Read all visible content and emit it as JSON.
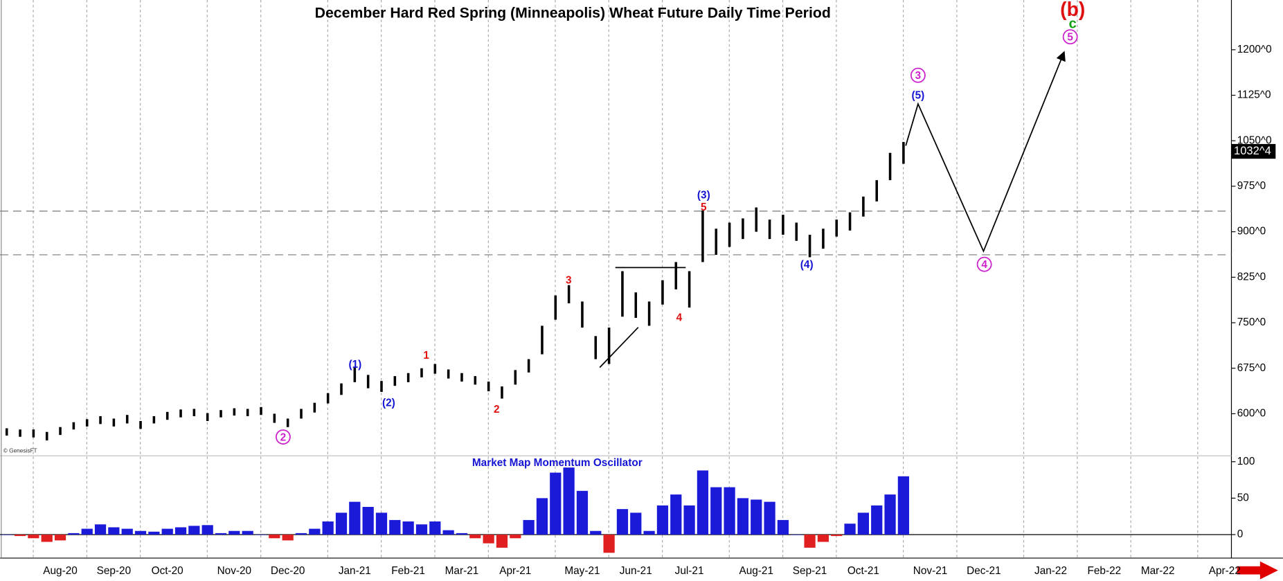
{
  "chart_data": [
    {
      "type": "range-bar",
      "title": "December Hard Red Spring (Minneapolis) Wheat Future  Daily Time Period",
      "credit": "© GenesisFT",
      "color": "#000000",
      "categories": [
        null,
        null,
        null,
        null,
        "Aug-20",
        null,
        null,
        null,
        "Sep-20",
        null,
        null,
        null,
        "Oct-20",
        null,
        null,
        null,
        null,
        "Nov-20",
        null,
        null,
        null,
        "Dec-20",
        null,
        null,
        null,
        null,
        "Jan-21",
        null,
        null,
        null,
        "Feb-21",
        null,
        null,
        null,
        "Mar-21",
        null,
        null,
        null,
        "Apr-21",
        null,
        null,
        null,
        null,
        "May-21",
        null,
        null,
        null,
        "Jun-21",
        null,
        null,
        null,
        "Jul-21",
        null,
        null,
        null,
        null,
        "Aug-21",
        null,
        null,
        null,
        "Sep-21",
        null,
        null,
        null,
        "Oct-21",
        null,
        null,
        null,
        null,
        "Nov-21",
        null,
        null,
        null,
        "Dec-21",
        null,
        null,
        null,
        null,
        "Jan-22",
        null,
        null,
        null,
        "Feb-22",
        null,
        null,
        null,
        "Mar-22",
        null,
        null,
        null,
        null,
        "Apr-22"
      ],
      "high": [
        576,
        574,
        574,
        570,
        578,
        586,
        591,
        596,
        592,
        598,
        588,
        596,
        603,
        607,
        608,
        601,
        606,
        609,
        608,
        611,
        600,
        592,
        608,
        618,
        634,
        650,
        676,
        664,
        654,
        662,
        667,
        675,
        682,
        673,
        667,
        662,
        653,
        645,
        672,
        690,
        745,
        795,
        812,
        785,
        728,
        742,
        835,
        800,
        785,
        820,
        850,
        835,
        935,
        905,
        915,
        922,
        940,
        920,
        928,
        915,
        895,
        905,
        920,
        932,
        958,
        985,
        1030,
        1048,
        null,
        null,
        null,
        null,
        null,
        null,
        null,
        null,
        null,
        null,
        null,
        null,
        null,
        null,
        null,
        null,
        null,
        null,
        null,
        null,
        null,
        null,
        null,
        null
      ],
      "low": [
        564,
        562,
        561,
        556,
        565,
        574,
        579,
        583,
        579,
        584,
        575,
        584,
        590,
        594,
        596,
        588,
        594,
        597,
        596,
        598,
        585,
        578,
        592,
        602,
        617,
        631,
        652,
        642,
        636,
        646,
        652,
        660,
        666,
        658,
        653,
        648,
        637,
        625,
        648,
        668,
        698,
        755,
        782,
        742,
        690,
        682,
        760,
        758,
        745,
        780,
        805,
        775,
        850,
        862,
        875,
        888,
        900,
        888,
        895,
        885,
        858,
        872,
        892,
        902,
        925,
        950,
        985,
        1012,
        null,
        null,
        null,
        null,
        null,
        null,
        null,
        null,
        null,
        null,
        null,
        null,
        null,
        null,
        null,
        null,
        null,
        null,
        null,
        null,
        null,
        null,
        null,
        null
      ],
      "ylim": [
        532,
        1282
      ],
      "yticks": [
        {
          "value": 600,
          "label": "600^0"
        },
        {
          "value": 675,
          "label": "675^0"
        },
        {
          "value": 750,
          "label": "750^0"
        },
        {
          "value": 825,
          "label": "825^0"
        },
        {
          "value": 900,
          "label": "900^0"
        },
        {
          "value": 975,
          "label": "975^0"
        },
        {
          "value": 1050,
          "label": "1050^0"
        },
        {
          "value": 1125,
          "label": "1125^0"
        },
        {
          "value": 1200,
          "label": "1200^0"
        }
      ],
      "reference_lines": [
        934,
        862
      ],
      "last_price": {
        "value": 1032.5,
        "label": "1032^4"
      },
      "annotations": [
        {
          "text": "(1)",
          "color": "#1414d2"
        },
        {
          "text": "(2)",
          "color": "#1414d2"
        },
        {
          "text": "(3)",
          "color": "#1414d2"
        },
        {
          "text": "(4)",
          "color": "#1414d2"
        },
        {
          "text": "(5)",
          "color": "#1414d2"
        },
        {
          "text": "1",
          "color": "#e01010"
        },
        {
          "text": "2",
          "color": "#e01010"
        },
        {
          "text": "3",
          "color": "#e01010"
        },
        {
          "text": "4",
          "color": "#e01010"
        },
        {
          "text": "5",
          "color": "#e01010"
        },
        {
          "text": "(b)",
          "color": "#e01010"
        },
        {
          "text": "c",
          "color": "#10a010"
        },
        {
          "text": "2",
          "color": "#cc22cc"
        },
        {
          "text": "3",
          "color": "#cc22cc"
        },
        {
          "text": "4",
          "color": "#cc22cc"
        },
        {
          "text": "5",
          "color": "#cc22cc"
        }
      ]
    },
    {
      "type": "oscillator",
      "title": "Market Map Momentum Oscillator",
      "positive_color": "#1a1ad8",
      "negative_color": "#e02020",
      "values": [
        0,
        -2,
        -5,
        -10,
        -8,
        2,
        8,
        14,
        10,
        8,
        5,
        4,
        8,
        10,
        12,
        13,
        2,
        5,
        5,
        0,
        -5,
        -8,
        2,
        8,
        18,
        30,
        45,
        38,
        30,
        20,
        18,
        14,
        18,
        6,
        2,
        -5,
        -12,
        -18,
        -5,
        20,
        50,
        85,
        92,
        60,
        5,
        -25,
        35,
        30,
        5,
        40,
        55,
        40,
        88,
        65,
        65,
        50,
        48,
        45,
        20,
        0,
        -18,
        -10,
        -2,
        15,
        30,
        40,
        55,
        80,
        null,
        null,
        null,
        null,
        null,
        null,
        null,
        null,
        null,
        null,
        null,
        null,
        null,
        null,
        null,
        null,
        null,
        null,
        null,
        null,
        null,
        null,
        null,
        null
      ],
      "ylim": [
        -30,
        107
      ],
      "yticks": [
        0,
        50,
        100
      ]
    }
  ]
}
